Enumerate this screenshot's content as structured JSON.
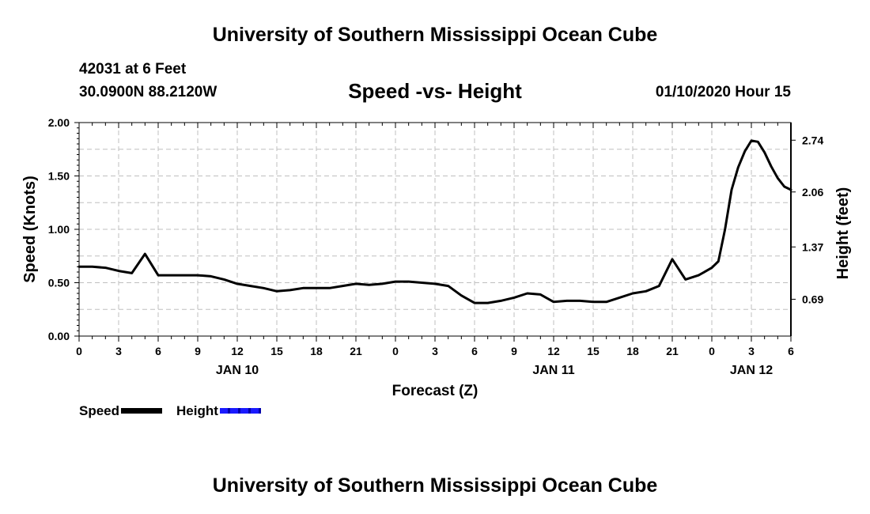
{
  "header": {
    "title": "University of Southern Mississippi Ocean Cube",
    "station_id": "42031 at 6 Feet",
    "station_coords": "30.0900N 88.2120W",
    "chart_title": "Speed -vs- Height",
    "run_time": "01/10/2020 Hour 15"
  },
  "footer": {
    "title": "University of Southern Mississippi Ocean Cube"
  },
  "legend": {
    "speed_label": "Speed",
    "height_label": "Height"
  },
  "colors": {
    "speed_line": "#000000",
    "height_line": "#1a1aff",
    "grid": "#bfbfbf"
  },
  "chart_data": {
    "type": "line",
    "title": "Speed -vs- Height",
    "xlabel": "Forecast (Z)",
    "ylabel": "Speed (Knots)",
    "y2label": "Height (feet)",
    "ylim": [
      0,
      2.0
    ],
    "yticks": [
      "0.00",
      "0.50",
      "1.00",
      "1.50",
      "2.00"
    ],
    "y2ticks": [
      {
        "label": "0.69",
        "speed_equiv": 0.345
      },
      {
        "label": "1.37",
        "speed_equiv": 0.835
      },
      {
        "label": "2.06",
        "speed_equiv": 1.35
      },
      {
        "label": "2.74",
        "speed_equiv": 1.835
      }
    ],
    "xlim": [
      0,
      54
    ],
    "xticks": [
      "0",
      "3",
      "6",
      "9",
      "12",
      "15",
      "18",
      "21",
      "0",
      "3",
      "6",
      "9",
      "12",
      "15",
      "18",
      "21",
      "0",
      "3",
      "6"
    ],
    "xtick_step_hours": 3,
    "date_labels": [
      {
        "label": "JAN 10",
        "hour": 12
      },
      {
        "label": "JAN 11",
        "hour": 36
      },
      {
        "label": "JAN 12",
        "hour": 51
      }
    ],
    "grid": true,
    "series": [
      {
        "name": "Speed",
        "x": [
          0,
          1,
          2,
          3,
          4,
          5,
          6,
          7,
          8,
          9,
          10,
          11,
          12,
          13,
          14,
          15,
          16,
          17,
          18,
          19,
          20,
          21,
          22,
          23,
          24,
          25,
          26,
          27,
          28,
          29,
          30,
          31,
          32,
          33,
          34,
          35,
          36,
          37,
          38,
          39,
          40,
          41,
          42,
          43,
          44,
          45,
          46,
          47,
          48,
          48.5,
          49,
          49.5,
          50,
          50.5,
          51,
          51.5,
          52,
          52.5,
          53,
          53.5,
          54
        ],
        "values": [
          0.65,
          0.65,
          0.64,
          0.61,
          0.59,
          0.77,
          0.57,
          0.57,
          0.57,
          0.57,
          0.56,
          0.53,
          0.49,
          0.47,
          0.45,
          0.42,
          0.43,
          0.45,
          0.45,
          0.45,
          0.47,
          0.49,
          0.48,
          0.49,
          0.51,
          0.51,
          0.5,
          0.49,
          0.47,
          0.38,
          0.31,
          0.31,
          0.33,
          0.36,
          0.4,
          0.39,
          0.32,
          0.33,
          0.33,
          0.32,
          0.32,
          0.36,
          0.4,
          0.42,
          0.47,
          0.72,
          0.53,
          0.57,
          0.64,
          0.7,
          1.0,
          1.37,
          1.58,
          1.73,
          1.83,
          1.82,
          1.72,
          1.59,
          1.48,
          1.4,
          1.37
        ]
      },
      {
        "name": "Height",
        "x": [],
        "values": []
      }
    ]
  }
}
